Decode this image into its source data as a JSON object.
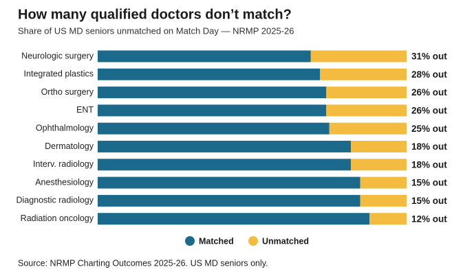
{
  "chart_data": {
    "type": "stacked-bar-horizontal",
    "title": "How many qualified doctors don’t match?",
    "subtitle": "Share of US MD seniors unmatched on Match Day — NRMP 2025-26",
    "categories": [
      "Neurologic surgery",
      "Integrated plastics",
      "Ortho surgery",
      "ENT",
      "Ophthalmology",
      "Dermatology",
      "Interv. radiology",
      "Anesthesiology",
      "Diagnostic radiology",
      "Radiation oncology"
    ],
    "series": [
      {
        "name": "Matched",
        "color": "#1b6a8b",
        "values": [
          69,
          72,
          74,
          74,
          75,
          82,
          82,
          85,
          85,
          88
        ]
      },
      {
        "name": "Unmatched",
        "color": "#f3bb3f",
        "values": [
          31,
          28,
          26,
          26,
          25,
          18,
          18,
          15,
          15,
          12
        ],
        "value_labels": [
          "31% out",
          "28% out",
          "26% out",
          "26% out",
          "25% out",
          "18% out",
          "18% out",
          "15% out",
          "15% out",
          "12% out"
        ]
      }
    ],
    "source": "Source: NRMP Charting Outcomes 2025-26. US MD seniors only."
  }
}
